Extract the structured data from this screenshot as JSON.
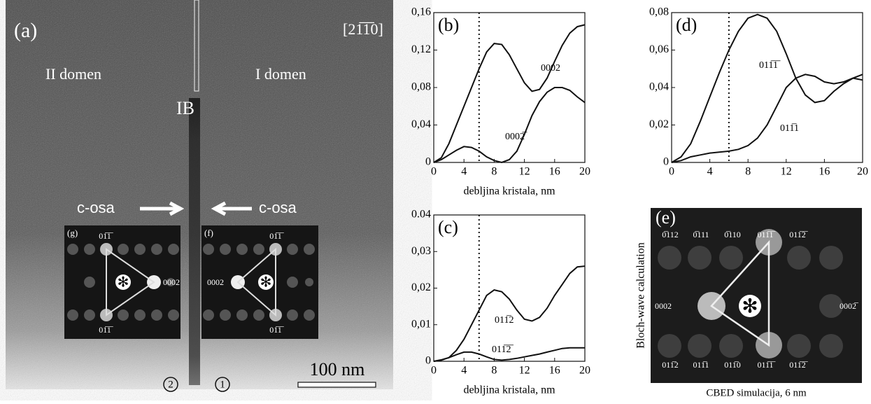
{
  "chart_data": [
    {
      "type": "line",
      "label": "(b)",
      "xlabel": "debljina kristala, nm",
      "vline": 6,
      "x": [
        0,
        1,
        2,
        3,
        4,
        5,
        6,
        7,
        8,
        9,
        10,
        11,
        12,
        13,
        14,
        15,
        16,
        17,
        18,
        19,
        20
      ],
      "series": [
        {
          "name": "0002",
          "color": "#111111",
          "values": [
            0,
            0.005,
            0.02,
            0.04,
            0.06,
            0.08,
            0.1,
            0.118,
            0.127,
            0.126,
            0.115,
            0.1,
            0.085,
            0.076,
            0.078,
            0.09,
            0.108,
            0.125,
            0.138,
            0.145,
            0.147
          ]
        },
        {
          "name": "0002̅",
          "color": "#111111",
          "values": [
            0,
            0.003,
            0.008,
            0.013,
            0.017,
            0.016,
            0.012,
            0.006,
            0.002,
            0,
            0.003,
            0.012,
            0.03,
            0.05,
            0.065,
            0.075,
            0.08,
            0.08,
            0.077,
            0.07,
            0.064
          ]
        }
      ],
      "xlim": [
        0,
        20
      ],
      "xticks": [
        0,
        4,
        8,
        12,
        16,
        20
      ],
      "ylim": [
        0,
        0.16
      ],
      "yticks": [
        0,
        {
          "value": 0.04,
          "label": "0,04"
        },
        {
          "value": 0.08,
          "label": "0,08"
        },
        {
          "value": 0.12,
          "label": "0,12"
        },
        {
          "value": 0.16,
          "label": "0,16"
        }
      ]
    },
    {
      "type": "line",
      "label": "(c)",
      "xlabel": "debljina kristala, nm",
      "vline": 6,
      "x": [
        0,
        1,
        2,
        3,
        4,
        5,
        6,
        7,
        8,
        9,
        10,
        11,
        12,
        13,
        14,
        15,
        16,
        17,
        18,
        19,
        20
      ],
      "series": [
        {
          "name": "011̅2",
          "color": "#111111",
          "values": [
            0,
            0.0003,
            0.001,
            0.003,
            0.006,
            0.01,
            0.014,
            0.018,
            0.0195,
            0.019,
            0.017,
            0.014,
            0.0115,
            0.011,
            0.012,
            0.0145,
            0.018,
            0.021,
            0.024,
            0.0258,
            0.026
          ]
        },
        {
          "name": "011̅2̅",
          "color": "#111111",
          "values": [
            0,
            0.0004,
            0.001,
            0.0018,
            0.0025,
            0.0025,
            0.002,
            0.0012,
            0.0005,
            0.0003,
            0.0005,
            0.0008,
            0.0012,
            0.0016,
            0.002,
            0.0025,
            0.003,
            0.0035,
            0.0037,
            0.0037,
            0.0037
          ]
        }
      ],
      "xlim": [
        0,
        20
      ],
      "xticks": [
        0,
        4,
        8,
        12,
        16,
        20
      ],
      "ylim": [
        0,
        0.04
      ],
      "yticks": [
        0,
        {
          "value": 0.01,
          "label": "0,01"
        },
        {
          "value": 0.02,
          "label": "0,02"
        },
        {
          "value": 0.03,
          "label": "0,03"
        },
        {
          "value": 0.04,
          "label": "0.04"
        }
      ]
    },
    {
      "type": "line",
      "label": "(d)",
      "vline": 6,
      "x": [
        0,
        1,
        2,
        3,
        4,
        5,
        6,
        7,
        8,
        9,
        10,
        11,
        12,
        13,
        14,
        15,
        16,
        17,
        18,
        19,
        20
      ],
      "series": [
        {
          "name": "011̅1̅",
          "color": "#111111",
          "values": [
            0,
            0.003,
            0.01,
            0.022,
            0.035,
            0.048,
            0.06,
            0.07,
            0.077,
            0.079,
            0.077,
            0.07,
            0.058,
            0.045,
            0.036,
            0.032,
            0.033,
            0.038,
            0.042,
            0.045,
            0.044
          ]
        },
        {
          "name": "011̅1",
          "color": "#111111",
          "values": [
            0,
            0.001,
            0.003,
            0.004,
            0.005,
            0.0055,
            0.006,
            0.007,
            0.009,
            0.013,
            0.02,
            0.03,
            0.04,
            0.045,
            0.047,
            0.046,
            0.043,
            0.042,
            0.043,
            0.045,
            0.047
          ]
        }
      ],
      "xlim": [
        0,
        20
      ],
      "xticks": [
        0,
        4,
        8,
        12,
        16,
        20
      ],
      "ylim": [
        0,
        0.08
      ],
      "yticks": [
        0,
        {
          "value": 0.02,
          "label": "0,02"
        },
        {
          "value": 0.04,
          "label": "0,04"
        },
        {
          "value": 0.06,
          "label": "0,06"
        },
        {
          "value": 0.08,
          "label": "0,08"
        }
      ]
    }
  ],
  "panel_a": {
    "label": "(a)",
    "zone": "[21̅1̅0]",
    "left": "II domen",
    "right": "I domen",
    "boundary": "IB",
    "axis_left": "c-osa",
    "axis_right": "c-osa",
    "inset_g": {
      "label": "(g)",
      "top": "01̅1̅",
      "right": "0002",
      "bottom": "01̅1̅"
    },
    "inset_f": {
      "label": "(f)",
      "top": "01̅1̅",
      "left": "0002",
      "bottom": "01̅1̅"
    },
    "marker_2": "2",
    "marker_1": "1",
    "scale": "100 nm"
  },
  "panel_e": {
    "label": "(e)",
    "top": [
      "0̅112",
      "0̅111",
      "0̅110",
      "011̅1̅",
      "011̅2̅"
    ],
    "bottom": [
      "011̅2",
      "011̅1",
      "011̅0",
      "011̅1̅",
      "011̅2̅"
    ],
    "left": "0002",
    "right": "0002̅",
    "side": "Bloch-wave calculation",
    "caption": "CBED simulacija, 6 nm"
  }
}
